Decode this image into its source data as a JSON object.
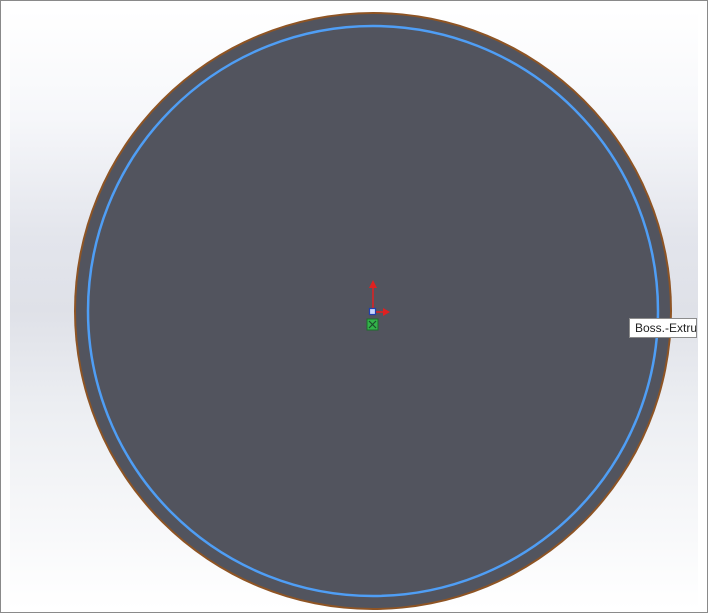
{
  "graphics_area": {
    "part": {
      "face_color": "#52545e",
      "edge_color": "#9a5a25",
      "highlight_color": "#4f9ef5"
    },
    "origin": {
      "x_axis_color": "#e02020",
      "y_axis_color": "#e02020",
      "point_color": "#2f9e44"
    }
  },
  "tooltip": {
    "text": "Boss.-Extru"
  }
}
